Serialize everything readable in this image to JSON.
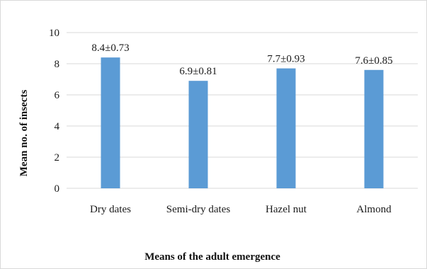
{
  "chart_data": {
    "type": "bar",
    "categories": [
      "Dry dates",
      "Semi-dry dates",
      "Hazel nut",
      "Almond"
    ],
    "values": [
      8.4,
      6.9,
      7.7,
      7.6
    ],
    "data_labels": [
      "8.4±0.73",
      "6.9±0.81",
      "7.7±0.93",
      "7.6±0.85"
    ],
    "xlabel": "Means of the adult emergence",
    "ylabel": "Mean no. of insects",
    "ylim": [
      0,
      10
    ],
    "yticks": [
      "0",
      "2",
      "4",
      "6",
      "8",
      "10"
    ],
    "grid": true,
    "bar_color": "#5b9bd5",
    "grid_color": "#d9d9d9"
  }
}
